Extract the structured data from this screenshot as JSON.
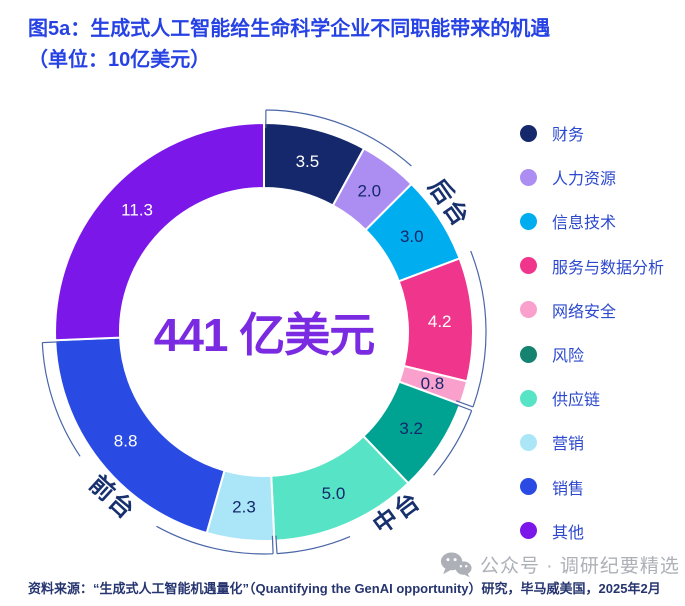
{
  "header": {
    "title": "图5a：生成式人工智能给生命科学企业不同职能带来的机遇",
    "subtitle": "（单位：10亿美元）"
  },
  "chart_data": {
    "type": "donut",
    "center_label": "441 亿美元",
    "total": 44.1,
    "unit": "10亿美元",
    "categories": [
      "财务",
      "人力资源",
      "信息技术",
      "服务与数据分析",
      "网络安全",
      "风险",
      "供应链",
      "营销",
      "销售",
      "其他"
    ],
    "keys": [
      "finance",
      "human-resources",
      "information-technology",
      "services-data-analytics",
      "cybersecurity",
      "risk",
      "supply-chain",
      "marketing",
      "sales",
      "other"
    ],
    "values": [
      3.5,
      2.0,
      3.0,
      4.2,
      0.8,
      3.2,
      5.0,
      2.3,
      8.8,
      11.3
    ],
    "colors": [
      "#14286B",
      "#AC8EF3",
      "#00AEEF",
      "#F0368C",
      "#F9A0CD",
      "#00A392",
      "#57E3C5",
      "#ABE6F8",
      "#2A4BE3",
      "#7B18E9"
    ],
    "legend_dot_colors": [
      "#14286B",
      "#AC8EF3",
      "#00AEEF",
      "#F0368C",
      "#F9A0CD",
      "#15836F",
      "#57E3C5",
      "#ABE6F8",
      "#2A4BE3",
      "#7B18E9"
    ],
    "value_text_colors": [
      "#FFFFFF",
      "#14286B",
      "#14286B",
      "#FFFFFF",
      "#14286B",
      "#14286B",
      "#14286B",
      "#14286B",
      "#FFFFFF",
      "#FFFFFF"
    ],
    "groups": [
      {
        "label": "后台",
        "key": "back-office",
        "from": 0,
        "to": 4
      },
      {
        "label": "中台",
        "key": "middle-office",
        "from": 5,
        "to": 6
      },
      {
        "label": "前台",
        "key": "front-office",
        "from": 7,
        "to": 8
      }
    ],
    "start_angle": 0,
    "legend_position": "right"
  },
  "footer": {
    "source": "资料来源：“生成式人工智能机遇量化”（Quantifying the GenAI opportunity）研究，毕马威美国，2025年2月"
  },
  "watermark": {
    "icon": "wechat-icon",
    "text": "公众号 · 调研纪要精选"
  },
  "colors": {
    "title_text": "#2642E4",
    "legend_text": "#2C49CE",
    "center_text": "#7A2BE2",
    "source_text": "#26356F",
    "watermark_text": "#9FA3AB",
    "bracket": "#4A66A8",
    "group_label": "#17306E"
  }
}
